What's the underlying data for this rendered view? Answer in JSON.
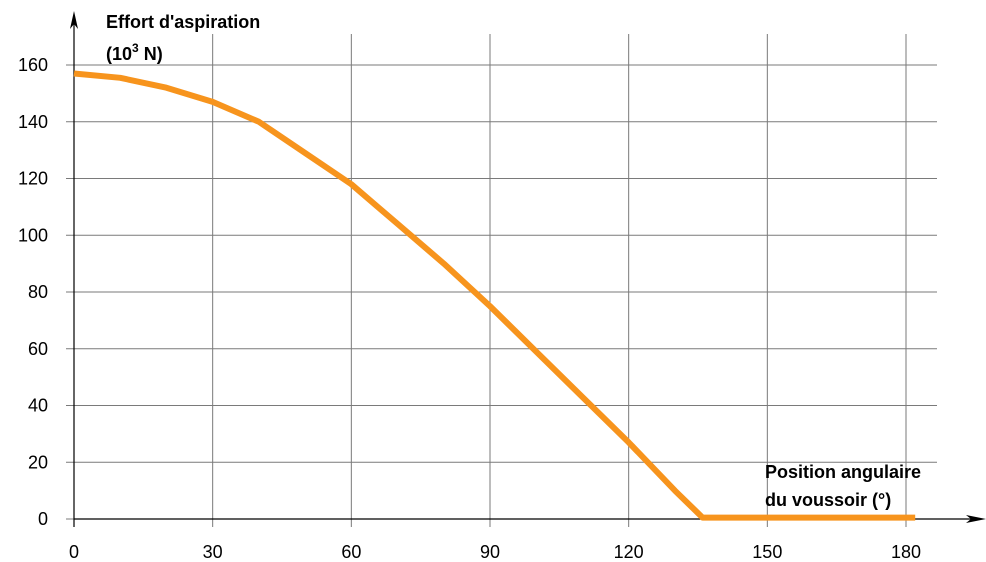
{
  "chart_data": {
    "type": "line",
    "title": "",
    "ylabel_line1": "Effort d'aspiration",
    "ylabel_unit_prefix": "(10",
    "ylabel_unit_exponent": "3",
    "ylabel_unit_suffix": " N)",
    "xlabel_line1": "Position angulaire",
    "xlabel_line2": "du voussoir (°)",
    "xlim": [
      0,
      186
    ],
    "ylim": [
      0,
      170
    ],
    "xticks": [
      0,
      30,
      60,
      90,
      120,
      150,
      180
    ],
    "yticks": [
      0,
      20,
      40,
      60,
      80,
      100,
      120,
      140,
      160
    ],
    "grid": true,
    "legend": "none",
    "series": [
      {
        "color": "#F7941D",
        "x": [
          0,
          10,
          20,
          30,
          40,
          50,
          60,
          70,
          80,
          90,
          100,
          110,
          120,
          130,
          136,
          150,
          170,
          182
        ],
        "y": [
          157,
          155.5,
          152,
          147,
          140,
          129,
          118,
          104,
          90,
          75,
          59,
          43,
          27,
          10,
          0.5,
          0.5,
          0.5,
          0.5
        ]
      }
    ]
  }
}
